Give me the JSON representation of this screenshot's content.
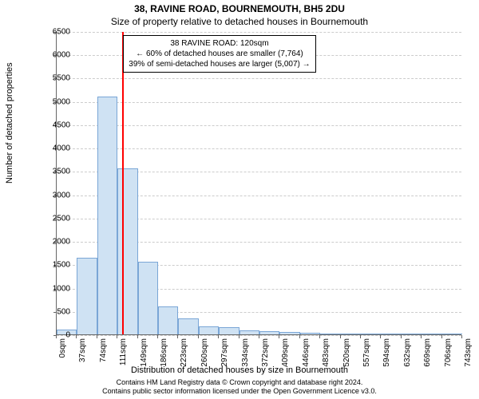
{
  "title": "38, RAVINE ROAD, BOURNEMOUTH, BH5 2DU",
  "subtitle": "Size of property relative to detached houses in Bournemouth",
  "ylabel": "Number of detached properties",
  "xlabel": "Distribution of detached houses by size in Bournemouth",
  "attribution_line1": "Contains HM Land Registry data © Crown copyright and database right 2024.",
  "attribution_line2": "Contains public sector information licensed under the Open Government Licence v3.0.",
  "chart": {
    "type": "histogram",
    "ylim": [
      0,
      6500
    ],
    "ytick_step": 500,
    "xticks": [
      "0sqm",
      "37sqm",
      "74sqm",
      "111sqm",
      "149sqm",
      "186sqm",
      "223sqm",
      "260sqm",
      "297sqm",
      "334sqm",
      "372sqm",
      "409sqm",
      "446sqm",
      "483sqm",
      "520sqm",
      "557sqm",
      "594sqm",
      "632sqm",
      "669sqm",
      "706sqm",
      "743sqm"
    ],
    "values": [
      100,
      1650,
      5100,
      3550,
      1550,
      600,
      350,
      170,
      150,
      90,
      70,
      60,
      40,
      0,
      0,
      0,
      0,
      0,
      0,
      0
    ],
    "bar_fill": "#cfe2f3",
    "bar_stroke": "#7aa6d6",
    "grid_color": "#cccccc",
    "axis_color": "#666666",
    "background": "#ffffff",
    "refline_x_index": 3.24,
    "refline_color": "#ff0000",
    "annotation": {
      "line1": "38 RAVINE ROAD: 120sqm",
      "line2": "← 60% of detached houses are smaller (7,764)",
      "line3": "39% of semi-detached houses are larger (5,007) →"
    },
    "tick_fontsize": 10,
    "label_fontsize": 11,
    "title_fontsize": 12
  }
}
